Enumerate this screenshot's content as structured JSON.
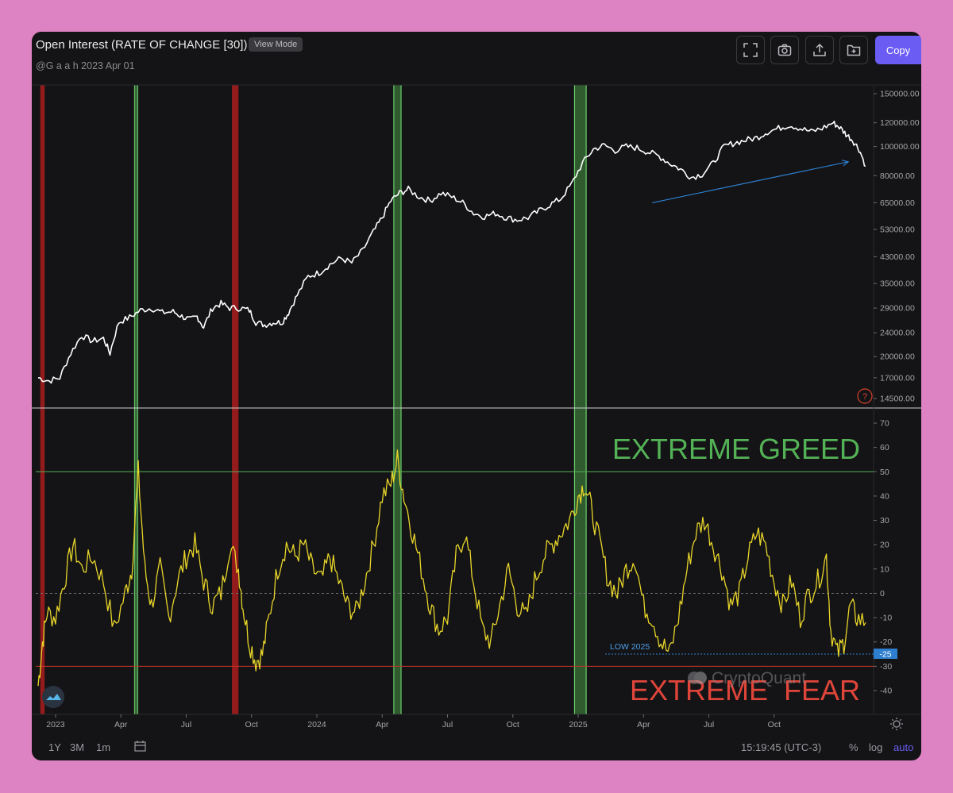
{
  "header": {
    "title": "Open Interest (RATE OF CHANGE [30])",
    "view_mode": "View Mode",
    "author": "@G a a h  2023 Apr 01",
    "copy_label": "Copy"
  },
  "toolbar": {
    "icons": [
      "fullscreen-icon",
      "camera-icon",
      "share-icon",
      "add-folder-icon"
    ]
  },
  "footer": {
    "ranges": [
      "1Y",
      "3M",
      "1m"
    ],
    "timestamp": "15:19:45 (UTC-3)",
    "percent": "%",
    "log": "log",
    "auto": "auto"
  },
  "colors": {
    "background": "#141416",
    "price_line": "#ffffff",
    "oscillator_line": "#e8d52a",
    "greed": "#54b256",
    "fear": "#e0453a",
    "accent": "#6b5cf3",
    "trend_arrow": "#2e7fd0"
  },
  "chart_data": [
    {
      "type": "line",
      "series": [
        {
          "values": [
            [
              0,
              17000
            ],
            [
              5,
              16600
            ],
            [
              10,
              17000
            ],
            [
              15,
              20500
            ],
            [
              20,
              23500
            ],
            [
              25,
              22500
            ],
            [
              30,
              23000
            ],
            [
              33,
              20500
            ],
            [
              37,
              26000
            ],
            [
              42,
              27000
            ],
            [
              47,
              28500
            ],
            [
              52,
              29000
            ],
            [
              57,
              28000
            ],
            [
              62,
              28200
            ],
            [
              66,
              27200
            ],
            [
              70,
              26500
            ],
            [
              73,
              27200
            ],
            [
              76,
              25000
            ],
            [
              80,
              29000
            ],
            [
              84,
              30000
            ],
            [
              88,
              29000
            ],
            [
              93,
              29000
            ],
            [
              97,
              28500
            ],
            [
              100,
              26000
            ],
            [
              104,
              25500
            ],
            [
              108,
              26000
            ],
            [
              112,
              26000
            ],
            [
              115,
              28000
            ],
            [
              119,
              32000
            ],
            [
              124,
              37000
            ],
            [
              129,
              38000
            ],
            [
              134,
              40500
            ],
            [
              139,
              42500
            ],
            [
              144,
              41000
            ],
            [
              149,
              45000
            ],
            [
              154,
              52000
            ],
            [
              158,
              58000
            ],
            [
              162,
              66000
            ],
            [
              166,
              70000
            ],
            [
              170,
              72000
            ],
            [
              175,
              68000
            ],
            [
              180,
              66000
            ],
            [
              185,
              70000
            ],
            [
              190,
              68000
            ],
            [
              195,
              65000
            ],
            [
              200,
              60000
            ],
            [
              205,
              58500
            ],
            [
              210,
              60000
            ],
            [
              215,
              58000
            ],
            [
              220,
              57000
            ],
            [
              225,
              58000
            ],
            [
              230,
              61000
            ],
            [
              235,
              64000
            ],
            [
              240,
              67000
            ],
            [
              245,
              75000
            ],
            [
              250,
              88000
            ],
            [
              255,
              98000
            ],
            [
              260,
              101000
            ],
            [
              265,
              97000
            ],
            [
              270,
              100000
            ],
            [
              275,
              99000
            ],
            [
              280,
              96000
            ],
            [
              285,
              93000
            ],
            [
              290,
              88000
            ],
            [
              295,
              84000
            ],
            [
              300,
              79000
            ],
            [
              305,
              81000
            ],
            [
              310,
              88000
            ],
            [
              315,
              100000
            ],
            [
              320,
              103000
            ],
            [
              325,
              105000
            ],
            [
              330,
              107000
            ],
            [
              335,
              112000
            ],
            [
              340,
              115000
            ],
            [
              345,
              118000
            ],
            [
              350,
              115000
            ],
            [
              355,
              112000
            ],
            [
              360,
              115000
            ],
            [
              365,
              120000
            ],
            [
              368,
              116000
            ],
            [
              371,
              110000
            ],
            [
              374,
              105000
            ],
            [
              377,
              98000
            ],
            [
              380,
              86000
            ]
          ]
        }
      ],
      "x_range": [
        0,
        380
      ],
      "y_scale": "log",
      "y_ticks": [
        "150000.00",
        "120000.00",
        "100000.00",
        "80000.00",
        "65000.00",
        "53000.00",
        "43000.00",
        "35000.00",
        "29000.00",
        "24000.00",
        "20000.00",
        "17000.00",
        "14500.00"
      ],
      "annotation": "upward trend arrow"
    },
    {
      "type": "line",
      "series": [
        {
          "values": [
            [
              0,
              -38
            ],
            [
              2,
              -20
            ],
            [
              4,
              -8
            ],
            [
              8,
              -10
            ],
            [
              12,
              5
            ],
            [
              16,
              20
            ],
            [
              20,
              10
            ],
            [
              25,
              15
            ],
            [
              30,
              5
            ],
            [
              35,
              -15
            ],
            [
              40,
              0
            ],
            [
              43,
              10
            ],
            [
              46,
              50
            ],
            [
              49,
              10
            ],
            [
              52,
              -5
            ],
            [
              56,
              10
            ],
            [
              60,
              -10
            ],
            [
              64,
              5
            ],
            [
              68,
              15
            ],
            [
              72,
              20
            ],
            [
              76,
              5
            ],
            [
              80,
              -5
            ],
            [
              84,
              0
            ],
            [
              88,
              20
            ],
            [
              92,
              10
            ],
            [
              94,
              -5
            ],
            [
              97,
              -20
            ],
            [
              100,
              -28
            ],
            [
              103,
              -25
            ],
            [
              106,
              -10
            ],
            [
              110,
              10
            ],
            [
              114,
              20
            ],
            [
              118,
              15
            ],
            [
              122,
              20
            ],
            [
              126,
              10
            ],
            [
              130,
              5
            ],
            [
              134,
              15
            ],
            [
              138,
              5
            ],
            [
              142,
              -5
            ],
            [
              146,
              -8
            ],
            [
              150,
              5
            ],
            [
              154,
              20
            ],
            [
              158,
              40
            ],
            [
              162,
              45
            ],
            [
              165,
              55
            ],
            [
              168,
              40
            ],
            [
              172,
              25
            ],
            [
              176,
              10
            ],
            [
              180,
              -5
            ],
            [
              184,
              -15
            ],
            [
              188,
              -10
            ],
            [
              192,
              15
            ],
            [
              196,
              25
            ],
            [
              200,
              5
            ],
            [
              204,
              -15
            ],
            [
              208,
              -20
            ],
            [
              212,
              -5
            ],
            [
              216,
              10
            ],
            [
              220,
              -5
            ],
            [
              224,
              -10
            ],
            [
              228,
              5
            ],
            [
              232,
              15
            ],
            [
              236,
              20
            ],
            [
              240,
              25
            ],
            [
              244,
              30
            ],
            [
              248,
              40
            ],
            [
              251,
              45
            ],
            [
              254,
              35
            ],
            [
              258,
              20
            ],
            [
              262,
              5
            ],
            [
              266,
              0
            ],
            [
              270,
              10
            ],
            [
              274,
              15
            ],
            [
              278,
              -5
            ],
            [
              282,
              -10
            ],
            [
              286,
              -20
            ],
            [
              290,
              -25
            ],
            [
              294,
              -10
            ],
            [
              298,
              10
            ],
            [
              302,
              25
            ],
            [
              306,
              30
            ],
            [
              310,
              20
            ],
            [
              314,
              10
            ],
            [
              318,
              -5
            ],
            [
              322,
              0
            ],
            [
              326,
              15
            ],
            [
              330,
              25
            ],
            [
              334,
              20
            ],
            [
              338,
              5
            ],
            [
              342,
              -5
            ],
            [
              346,
              5
            ],
            [
              350,
              -10
            ],
            [
              354,
              0
            ],
            [
              358,
              5
            ],
            [
              362,
              15
            ],
            [
              364,
              -15
            ],
            [
              367,
              -25
            ],
            [
              370,
              -20
            ],
            [
              373,
              -5
            ],
            [
              376,
              -10
            ],
            [
              380,
              -12
            ]
          ]
        }
      ],
      "x_range": [
        0,
        380
      ],
      "x_ticks": [
        [
          8,
          "2023"
        ],
        [
          38,
          "Apr"
        ],
        [
          68,
          "Jul"
        ],
        [
          98,
          "Oct"
        ],
        [
          128,
          "2024"
        ],
        [
          158,
          "Apr"
        ],
        [
          188,
          "Jul"
        ],
        [
          218,
          "Oct"
        ],
        [
          248,
          "2025"
        ],
        [
          278,
          "Apr"
        ],
        [
          308,
          "Jul"
        ],
        [
          338,
          "Oct"
        ]
      ],
      "y_range": [
        -50,
        75
      ],
      "y_ticks": [
        70,
        60,
        50,
        40,
        30,
        20,
        10,
        0,
        -10,
        -20,
        -30,
        -40
      ],
      "threshold_lines": {
        "greed": 50,
        "fear": -30,
        "zero": 0,
        "low": -25
      },
      "current_value_label": "-25",
      "annotations": [
        "EXTREME GREED",
        "EXTREME  FEAR",
        "LOW 2025",
        "CryptoQuant"
      ],
      "highlight_bands": [
        {
          "start": 1,
          "end": 3,
          "color": "red"
        },
        {
          "start": 44,
          "end": 46,
          "color": "green"
        },
        {
          "start": 89,
          "end": 92,
          "color": "red"
        },
        {
          "start": 163,
          "end": 167,
          "color": "green"
        },
        {
          "start": 246,
          "end": 252,
          "color": "green"
        }
      ]
    }
  ]
}
